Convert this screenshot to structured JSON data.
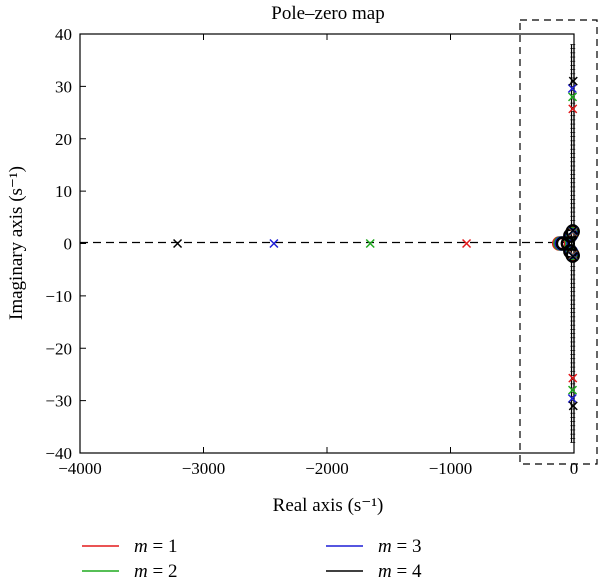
{
  "chart_data": {
    "type": "scatter",
    "title": "Pole–zero map",
    "xlabel": "Real axis (s⁻¹)",
    "ylabel": "Imaginary axis (s⁻¹)",
    "xlim": [
      -4000,
      0
    ],
    "ylim": [
      -40,
      40
    ],
    "xticks": [
      "−4000",
      "−3000",
      "−2000",
      "−1000",
      "0"
    ],
    "yticks": [
      "40",
      "30",
      "20",
      "10",
      "0",
      "−10",
      "−20",
      "−30",
      "−40"
    ],
    "grid": false,
    "legend_position": "bottom",
    "series": [
      {
        "name": "m = 1",
        "color": "#e41a1c",
        "poles": [
          [
            -870,
            0
          ],
          [
            -10,
            25.7
          ],
          [
            -10,
            -25.7
          ],
          [
            -8,
            2.2
          ],
          [
            -8,
            -2.2
          ]
        ],
        "zeros": [
          [
            -15,
            2
          ],
          [
            -15,
            -2
          ],
          [
            -120,
            0
          ]
        ]
      },
      {
        "name": "m = 2",
        "color": "#1faa1f",
        "poles": [
          [
            -1650,
            0
          ],
          [
            -12,
            28
          ],
          [
            -12,
            -28
          ],
          [
            -8,
            2.3
          ],
          [
            -8,
            -2.3
          ]
        ],
        "zeros": [
          [
            -20,
            1.8
          ],
          [
            -20,
            -1.8
          ],
          [
            -110,
            0
          ]
        ]
      },
      {
        "name": "m = 3",
        "color": "#1f1fd6",
        "poles": [
          [
            -2430,
            0
          ],
          [
            -14,
            29.6
          ],
          [
            -14,
            -29.6
          ],
          [
            -8,
            2.4
          ],
          [
            -8,
            -2.4
          ]
        ],
        "zeros": [
          [
            -25,
            1.6
          ],
          [
            -25,
            -1.6
          ],
          [
            -100,
            0
          ]
        ]
      },
      {
        "name": "m = 4",
        "color": "#000000",
        "poles": [
          [
            -3210,
            0
          ],
          [
            -6,
            31
          ],
          [
            -6,
            -31
          ],
          [
            -8,
            2.5
          ],
          [
            -8,
            -2.5
          ]
        ],
        "zeros": [
          [
            -30,
            1.5
          ],
          [
            -30,
            -1.5
          ],
          [
            -90,
            0
          ],
          [
            -50,
            0
          ],
          [
            -10,
            2.3
          ],
          [
            -10,
            -2.3
          ]
        ]
      }
    ]
  }
}
